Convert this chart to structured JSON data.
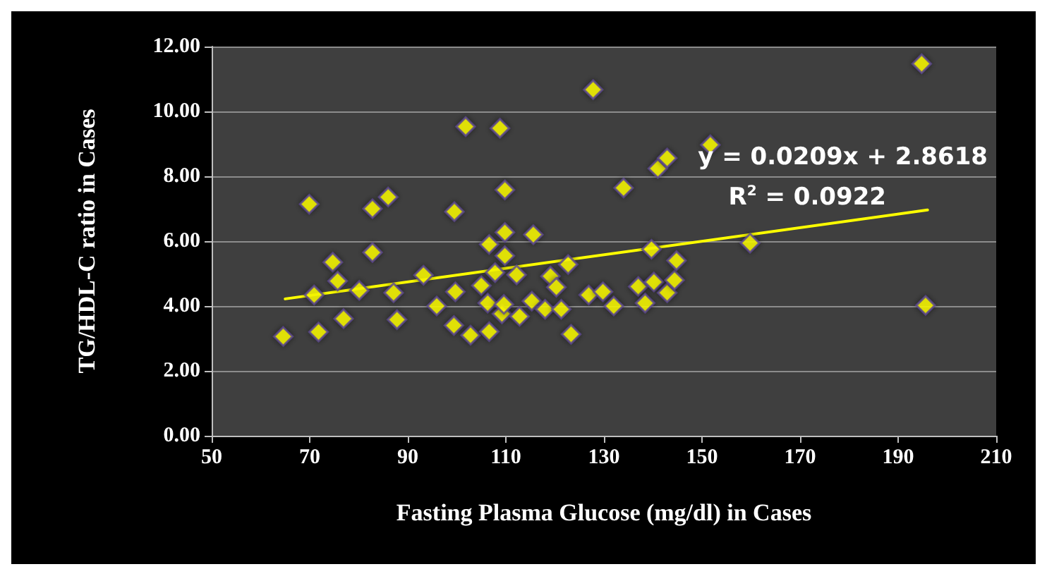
{
  "chart_data": {
    "type": "scatter",
    "xlabel": "Fasting Plasma Glucose (mg/dl) in Cases",
    "ylabel": "TG/HDL-C ratio in Cases",
    "xlim": [
      50,
      210
    ],
    "xticks": [
      50,
      70,
      90,
      110,
      130,
      150,
      170,
      190,
      210
    ],
    "ylim": [
      0,
      12
    ],
    "yticks": [
      {
        "value": 0,
        "label": "0.00"
      },
      {
        "value": 2,
        "label": "2.00"
      },
      {
        "value": 4,
        "label": "4.00"
      },
      {
        "value": 6,
        "label": "6.00"
      },
      {
        "value": 8,
        "label": "8.00"
      },
      {
        "value": 10,
        "label": "10.00"
      },
      {
        "value": 12,
        "label": "12.00"
      }
    ],
    "grid": "y",
    "marker": "diamond",
    "series": [
      {
        "color": "#ffff00",
        "x": [
          64.6,
          69.9,
          70.9,
          71.8,
          74.7,
          75.7,
          76.9,
          80.1,
          82.8,
          82.8,
          86.0,
          87.1,
          87.8,
          93.2,
          95.9,
          99.4,
          99.5,
          99.7,
          101.8,
          102.8,
          105.0,
          106.3,
          106.6,
          106.6,
          107.8,
          108.8,
          109.2,
          109.6,
          109.8,
          109.8,
          109.8,
          112.2,
          112.8,
          115.3,
          115.6,
          118.0,
          119.1,
          120.3,
          121.3,
          122.7,
          123.3,
          126.9,
          127.8,
          129.8,
          132.0,
          134.0,
          137.0,
          138.4,
          139.7,
          140.2,
          141.0,
          142.9,
          142.9,
          144.4,
          144.8,
          151.7,
          159.8,
          194.8,
          195.6
        ],
        "values": [
          3.06,
          7.14,
          4.34,
          3.2,
          5.35,
          4.77,
          3.61,
          4.48,
          7.0,
          5.65,
          7.36,
          4.41,
          3.58,
          4.95,
          4.0,
          3.4,
          6.91,
          4.44,
          9.53,
          3.1,
          4.63,
          4.09,
          5.9,
          3.21,
          5.03,
          9.48,
          3.76,
          4.05,
          7.58,
          6.27,
          5.55,
          4.96,
          3.68,
          4.15,
          6.2,
          3.9,
          4.92,
          4.58,
          3.9,
          5.28,
          3.13,
          4.34,
          10.67,
          4.44,
          4.0,
          7.64,
          4.6,
          4.09,
          5.75,
          4.74,
          8.24,
          8.56,
          4.41,
          4.8,
          5.4,
          8.97,
          5.94,
          11.47,
          4.02
        ]
      },
      {
        "type": "line",
        "color": "#ffff00",
        "marker": "none",
        "line_style": "solid",
        "x": [
          65,
          196
        ],
        "values": [
          4.22,
          6.96
        ]
      }
    ],
    "annotations": [
      "y = 0.0209x + 2.8618",
      "R$^{2}$ = 0.0922"
    ]
  }
}
